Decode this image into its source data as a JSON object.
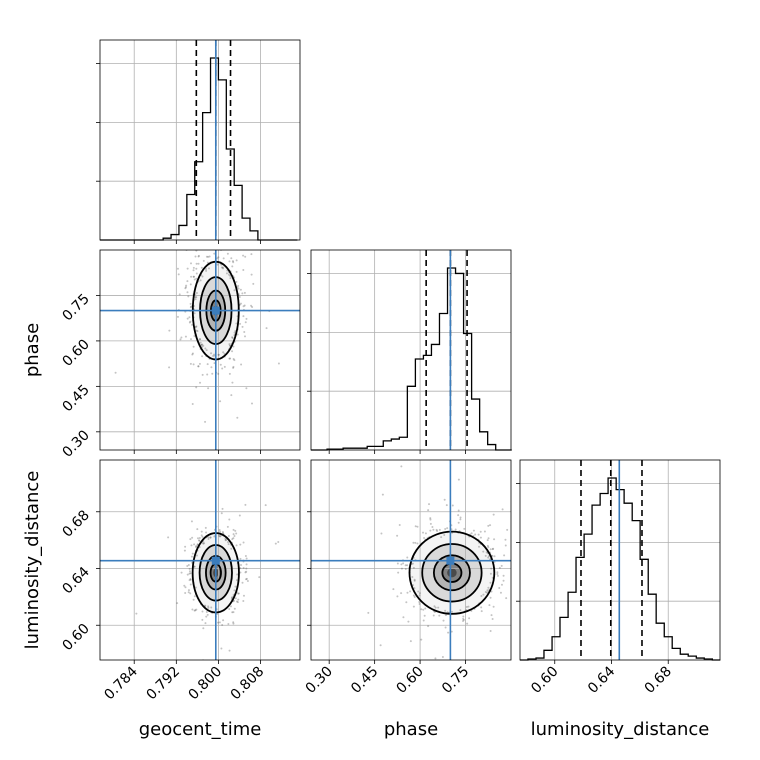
{
  "chart_data": {
    "type": "corner",
    "parameters": [
      "geocent_time",
      "phase",
      "luminosity_distance"
    ],
    "truths": {
      "geocent_time": 0.7995,
      "phase": 0.7,
      "luminosity_distance": 0.6455
    },
    "truth_color": "#3b7dbd",
    "grid": true,
    "axes": {
      "geocent_time": {
        "label": "geocent_time",
        "range": [
          0.7775,
          0.8155
        ],
        "ticks": [
          0.784,
          0.792,
          0.8,
          0.808
        ],
        "tick_labels": [
          "0.784",
          "0.792",
          "0.800",
          "0.808"
        ]
      },
      "phase": {
        "label": "phase",
        "range": [
          0.24,
          0.9
        ],
        "ticks": [
          0.3,
          0.45,
          0.6,
          0.75
        ],
        "tick_labels": [
          "0.30",
          "0.45",
          "0.60",
          "0.75"
        ]
      },
      "luminosity_distance": {
        "label": "luminosity_distance",
        "range": [
          0.5755,
          0.7165
        ],
        "ticks": [
          0.6,
          0.64,
          0.68
        ],
        "tick_labels": [
          "0.60",
          "0.64",
          "0.68"
        ]
      }
    },
    "diagonal": [
      {
        "parameter": "geocent_time",
        "quantiles": [
          0.7958,
          0.7995,
          0.8023
        ],
        "bin_edges": [
          0.7775,
          0.779,
          0.7805,
          0.782,
          0.7835,
          0.785,
          0.7865,
          0.788,
          0.7895,
          0.791,
          0.7925,
          0.794,
          0.7955,
          0.797,
          0.7985,
          0.8,
          0.8015,
          0.803,
          0.8045,
          0.806,
          0.8075,
          0.809,
          0.8105,
          0.812,
          0.8135,
          0.815
        ],
        "counts": [
          0,
          0,
          0,
          0,
          0,
          0,
          0,
          0,
          0.01,
          0.03,
          0.08,
          0.25,
          0.43,
          0.7,
          1.0,
          0.88,
          0.5,
          0.3,
          0.12,
          0.05,
          0,
          0,
          0,
          0,
          0
        ]
      },
      {
        "parameter": "phase",
        "quantiles": [
          0.62,
          0.7,
          0.755
        ],
        "bin_edges": [
          0.24,
          0.2665,
          0.293,
          0.3195,
          0.346,
          0.3725,
          0.399,
          0.4255,
          0.452,
          0.4785,
          0.505,
          0.5315,
          0.558,
          0.5845,
          0.611,
          0.6375,
          0.664,
          0.6905,
          0.717,
          0.7435,
          0.77,
          0.7965,
          0.823,
          0.8495,
          0.876,
          0.9025
        ],
        "counts": [
          0,
          0,
          0.005,
          0.005,
          0.01,
          0.01,
          0.01,
          0.02,
          0.02,
          0.05,
          0.06,
          0.07,
          0.35,
          0.5,
          0.52,
          0.58,
          0.75,
          1.0,
          0.97,
          0.64,
          0.28,
          0.1,
          0.03,
          0,
          0
        ]
      },
      {
        "parameter": "luminosity_distance",
        "quantiles": [
          0.6185,
          0.6395,
          0.6615
        ],
        "bin_edges": [
          0.5755,
          0.5811,
          0.5868,
          0.5924,
          0.5981,
          0.6037,
          0.6094,
          0.615,
          0.6207,
          0.6263,
          0.632,
          0.6376,
          0.6433,
          0.6489,
          0.6546,
          0.6602,
          0.6659,
          0.6715,
          0.6772,
          0.6828,
          0.6885,
          0.6941,
          0.6998,
          0.7054,
          0.7111,
          0.7167
        ],
        "counts": [
          0,
          0.005,
          0.01,
          0.05,
          0.12,
          0.22,
          0.35,
          0.53,
          0.65,
          0.8,
          0.86,
          0.94,
          0.88,
          0.81,
          0.72,
          0.52,
          0.34,
          0.19,
          0.12,
          0.06,
          0.03,
          0.02,
          0.01,
          0.005,
          0
        ]
      }
    ],
    "pairs": [
      {
        "x": "geocent_time",
        "y": "phase",
        "center": [
          0.7995,
          0.7
        ],
        "sigma": [
          0.0023,
          0.085
        ],
        "levels": [
          0.4,
          0.78,
          1.3,
          1.9
        ]
      },
      {
        "x": "geocent_time",
        "y": "luminosity_distance",
        "center": [
          0.7995,
          0.637
        ],
        "sigma": [
          0.0022,
          0.014
        ],
        "levels": [
          0.45,
          0.85,
          1.4,
          2.0
        ]
      },
      {
        "x": "phase",
        "y": "luminosity_distance",
        "center": [
          0.705,
          0.637
        ],
        "sigma": [
          0.07,
          0.0145
        ],
        "levels": [
          0.45,
          0.85,
          1.4,
          2.0
        ]
      }
    ]
  }
}
